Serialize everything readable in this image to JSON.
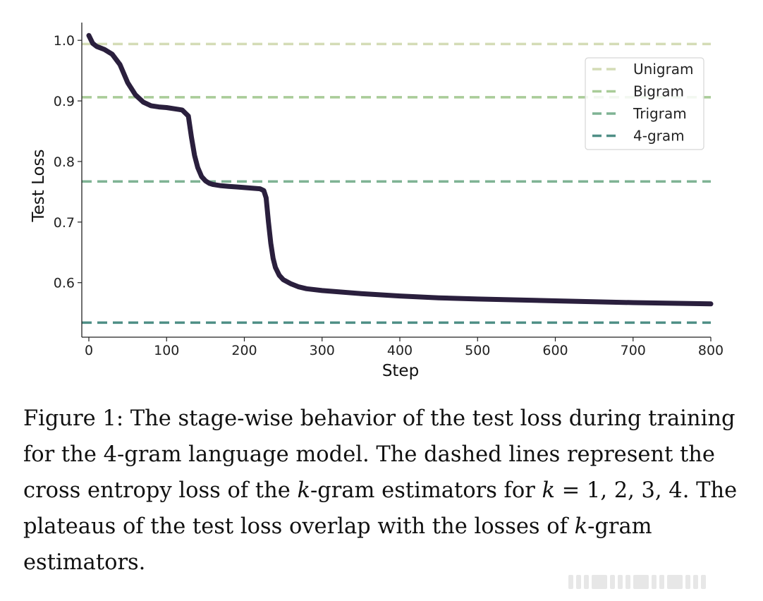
{
  "chart_data": {
    "type": "line",
    "xlabel": "Step",
    "ylabel": "Test Loss",
    "xlim": [
      0,
      800
    ],
    "ylim": [
      0.51,
      1.02
    ],
    "x_ticks": [
      0,
      100,
      200,
      300,
      400,
      500,
      600,
      700,
      800
    ],
    "y_ticks": [
      0.6,
      0.7,
      0.8,
      0.9,
      1.0
    ],
    "x_tick_labels": [
      "0",
      "100",
      "200",
      "300",
      "400",
      "500",
      "600",
      "700",
      "800"
    ],
    "y_tick_labels": [
      "0.6",
      "0.7",
      "0.8",
      "0.9",
      "1.0"
    ],
    "grid": false,
    "legend_position": "top-right",
    "series": [
      {
        "color": "#2a1f3d",
        "x": [
          0,
          5,
          10,
          20,
          30,
          40,
          50,
          60,
          70,
          80,
          90,
          100,
          110,
          120,
          128,
          132,
          136,
          140,
          145,
          150,
          155,
          160,
          170,
          180,
          190,
          200,
          210,
          220,
          225,
          228,
          231,
          234,
          237,
          240,
          245,
          250,
          260,
          270,
          280,
          300,
          350,
          400,
          450,
          500,
          600,
          700,
          800
        ],
        "y": [
          1.008,
          0.995,
          0.99,
          0.985,
          0.977,
          0.96,
          0.93,
          0.91,
          0.898,
          0.892,
          0.89,
          0.889,
          0.887,
          0.885,
          0.875,
          0.84,
          0.81,
          0.79,
          0.775,
          0.768,
          0.764,
          0.762,
          0.76,
          0.759,
          0.758,
          0.757,
          0.756,
          0.755,
          0.752,
          0.74,
          0.7,
          0.665,
          0.64,
          0.625,
          0.612,
          0.605,
          0.598,
          0.593,
          0.59,
          0.587,
          0.582,
          0.578,
          0.575,
          0.573,
          0.57,
          0.567,
          0.565
        ]
      }
    ],
    "reference_lines": [
      {
        "name": "Unigram",
        "value": 0.994,
        "color": "#d4dcb6"
      },
      {
        "name": "Bigram",
        "value": 0.906,
        "color": "#a9cc98"
      },
      {
        "name": "Trigram",
        "value": 0.767,
        "color": "#7fb394"
      },
      {
        "name": "4-gram",
        "value": 0.534,
        "color": "#4f8f86"
      }
    ]
  },
  "caption": {
    "prefix": "Figure 1: The stage-wise behavior of the test loss during training for the 4-gram language model. The dashed lines represent the cross entropy loss of the ",
    "k1": "k",
    "middle1": "-gram estimators for ",
    "k2": "k",
    "middle2": " = 1, 2, 3, 4. The plateaus of the test loss overlap with the losses of ",
    "k3": "k",
    "suffix": "-gram estimators."
  }
}
